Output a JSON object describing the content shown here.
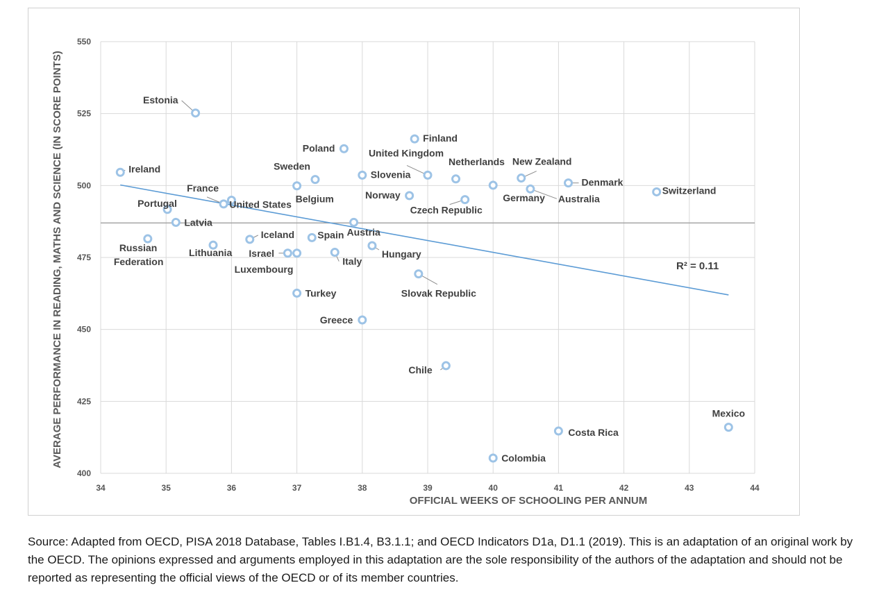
{
  "chart_data": {
    "type": "scatter",
    "xlabel": "OFFICIAL WEEKS OF SCHOOLING PER ANNUM",
    "ylabel": "AVERAGE PERFORMANCE IN READING, MATHS AND SCIENCE (IN SCORE POINTS)",
    "xlim": [
      34,
      44
    ],
    "ylim": [
      400,
      550
    ],
    "x_ticks": [
      34,
      35,
      36,
      37,
      38,
      39,
      40,
      41,
      42,
      43,
      44
    ],
    "y_ticks": [
      400,
      425,
      450,
      475,
      500,
      525,
      550
    ],
    "grid": true,
    "average_line_y": 487,
    "trendline": {
      "x": [
        34.3,
        43.6
      ],
      "y": [
        500.2,
        462
      ],
      "label": "R² = 0.11"
    },
    "colors": {
      "marker": "#9dc3e6",
      "trend": "#5b9bd5",
      "grid": "#d9d9d9",
      "average": "#a6a6a6"
    },
    "points": [
      {
        "name": "Estonia",
        "x": 35.45,
        "y": 525.2
      },
      {
        "name": "Ireland",
        "x": 34.3,
        "y": 504.6
      },
      {
        "name": "Poland",
        "x": 37.72,
        "y": 512.8
      },
      {
        "name": "Finland",
        "x": 38.8,
        "y": 516.2
      },
      {
        "name": "United Kingdom",
        "x": 39.0,
        "y": 503.6
      },
      {
        "name": "Slovenia",
        "x": 38.0,
        "y": 503.6
      },
      {
        "name": "Sweden",
        "x": 37.28,
        "y": 502.1
      },
      {
        "name": "Netherlands",
        "x": 39.43,
        "y": 502.3
      },
      {
        "name": "New Zealand",
        "x": 40.43,
        "y": 502.6
      },
      {
        "name": "Denmark",
        "x": 41.15,
        "y": 500.9
      },
      {
        "name": "Germany",
        "x": 40.0,
        "y": 500.1
      },
      {
        "name": "Australia",
        "x": 40.57,
        "y": 498.8
      },
      {
        "name": "Switzerland",
        "x": 42.5,
        "y": 497.8
      },
      {
        "name": "Norway",
        "x": 38.72,
        "y": 496.5
      },
      {
        "name": "Czech Republic",
        "x": 39.57,
        "y": 495.1
      },
      {
        "name": "Belgium",
        "x": 37.0,
        "y": 499.9
      },
      {
        "name": "France",
        "x": 35.88,
        "y": 493.6
      },
      {
        "name": "United States",
        "x": 36.0,
        "y": 494.9
      },
      {
        "name": "Portugal",
        "x": 35.02,
        "y": 491.7
      },
      {
        "name": "Latvia",
        "x": 35.15,
        "y": 487.2
      },
      {
        "name": "Austria",
        "x": 37.87,
        "y": 487.2
      },
      {
        "name": "Spain",
        "x": 37.23,
        "y": 481.9
      },
      {
        "name": "Iceland",
        "x": 36.28,
        "y": 481.3
      },
      {
        "name": "Russian Federation",
        "x": 34.72,
        "y": 481.5
      },
      {
        "name": "Lithuania",
        "x": 35.72,
        "y": 479.3
      },
      {
        "name": "Hungary",
        "x": 38.15,
        "y": 479.1
      },
      {
        "name": "Israel",
        "x": 36.86,
        "y": 476.5
      },
      {
        "name": "Luxembourg",
        "x": 37.0,
        "y": 476.5
      },
      {
        "name": "Italy",
        "x": 37.58,
        "y": 476.8
      },
      {
        "name": "Slovak Republic",
        "x": 38.86,
        "y": 469.3
      },
      {
        "name": "Turkey",
        "x": 37.0,
        "y": 462.6
      },
      {
        "name": "Greece",
        "x": 38.0,
        "y": 453.3
      },
      {
        "name": "Chile",
        "x": 39.28,
        "y": 437.4
      },
      {
        "name": "Mexico",
        "x": 43.6,
        "y": 416.0
      },
      {
        "name": "Costa Rica",
        "x": 41.0,
        "y": 414.7
      },
      {
        "name": "Colombia",
        "x": 40.0,
        "y": 405.3
      }
    ]
  },
  "source_text": "Source: Adapted from OECD, PISA 2018 Database, Tables I.B1.4, B3.1.1; and OECD Indicators D1a, D1.1 (2019). This is an adaptation of an original work by the OECD. The opinions expressed and arguments employed in this adaptation are the sole responsibility of the authors of the adaptation and should not be reported as representing the official views of the OECD or of its member countries."
}
